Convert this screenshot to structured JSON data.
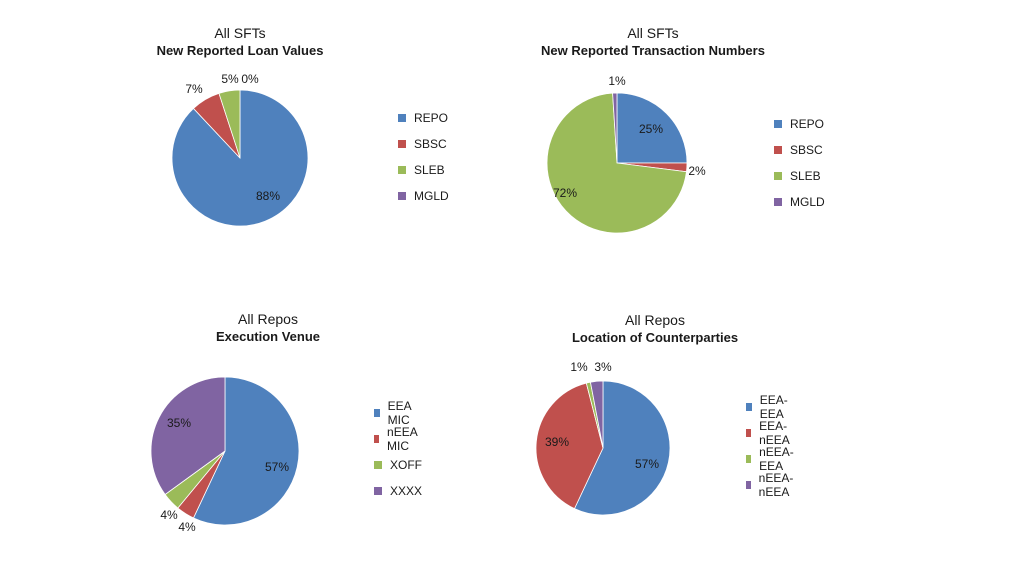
{
  "chart_data": [
    {
      "type": "pie",
      "subtitle": "All SFTs",
      "title": "New Reported Loan Values",
      "categories": [
        "REPO",
        "SBSC",
        "SLEB",
        "MGLD"
      ],
      "values": [
        88,
        7,
        5,
        0
      ],
      "labels": [
        "88%",
        "7%",
        "5%",
        "0%"
      ],
      "colors": [
        "#4F81BD",
        "#C0504D",
        "#9BBB59",
        "#8064A2"
      ],
      "legend": "right"
    },
    {
      "type": "pie",
      "subtitle": "All SFTs",
      "title": "New Reported Transaction Numbers",
      "categories": [
        "REPO",
        "SBSC",
        "SLEB",
        "MGLD"
      ],
      "values": [
        25,
        2,
        72,
        1
      ],
      "labels": [
        "25%",
        "2%",
        "72%",
        "1%"
      ],
      "colors": [
        "#4F81BD",
        "#C0504D",
        "#9BBB59",
        "#8064A2"
      ],
      "legend": "right"
    },
    {
      "type": "pie",
      "subtitle": "All Repos",
      "title": "Execution Venue",
      "categories": [
        "EEA MIC",
        "nEEA MIC",
        "XOFF",
        "XXXX"
      ],
      "values": [
        57,
        4,
        4,
        35
      ],
      "labels": [
        "57%",
        "4%",
        "4%",
        "35%"
      ],
      "colors": [
        "#4F81BD",
        "#C0504D",
        "#9BBB59",
        "#8064A2"
      ],
      "legend": "right"
    },
    {
      "type": "pie",
      "subtitle": "All Repos",
      "title": "Location of Counterparties",
      "categories": [
        "EEA-EEA",
        "EEA-nEEA",
        "nEEA-EEA",
        "nEEA-nEEA"
      ],
      "values": [
        57,
        39,
        1,
        3
      ],
      "labels": [
        "57%",
        "39%",
        "1%",
        "3%"
      ],
      "colors": [
        "#4F81BD",
        "#C0504D",
        "#9BBB59",
        "#8064A2"
      ],
      "legend": "right"
    }
  ]
}
